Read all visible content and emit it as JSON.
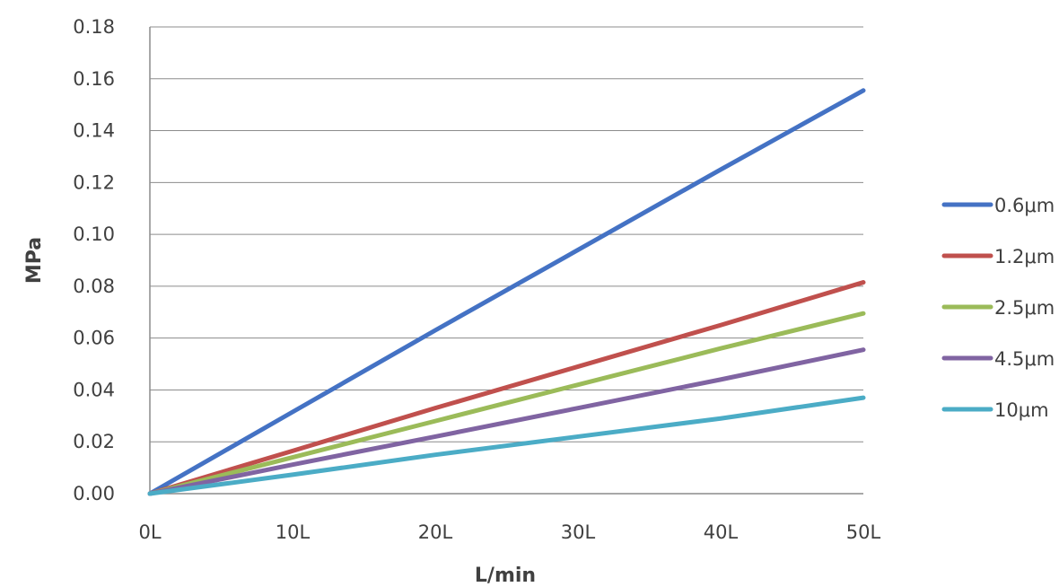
{
  "chart_data": {
    "type": "line",
    "title": "",
    "xlabel": "L/min",
    "ylabel": "MPa",
    "x": [
      0,
      10,
      20,
      30,
      40,
      50
    ],
    "x_tick_labels": [
      "0L",
      "10L",
      "20L",
      "30L",
      "40L",
      "50L"
    ],
    "y_ticks": [
      0,
      0.02,
      0.04,
      0.06,
      0.08,
      0.1,
      0.12,
      0.14,
      0.16,
      0.18
    ],
    "y_tick_labels": [
      "0.00",
      "0.02",
      "0.04",
      "0.06",
      "0.08",
      "0.10",
      "0.12",
      "0.14",
      "0.16",
      "0.18"
    ],
    "xlim": [
      0,
      50
    ],
    "ylim": [
      0,
      0.18
    ],
    "grid": "horizontal",
    "legend_position": "right",
    "series": [
      {
        "name": "0.6μm",
        "color": "#4472c4",
        "values": [
          0,
          0.0315,
          0.063,
          0.094,
          0.125,
          0.1555
        ]
      },
      {
        "name": "1.2μm",
        "color": "#c0504d",
        "values": [
          0,
          0.0165,
          0.033,
          0.049,
          0.065,
          0.0815
        ]
      },
      {
        "name": "2.5μm",
        "color": "#9bbb59",
        "values": [
          0,
          0.014,
          0.028,
          0.042,
          0.056,
          0.0695
        ]
      },
      {
        "name": "4.5μm",
        "color": "#8064a2",
        "values": [
          0,
          0.0112,
          0.022,
          0.033,
          0.044,
          0.0555
        ]
      },
      {
        "name": "10μm",
        "color": "#4bacc6",
        "values": [
          0,
          0.0073,
          0.015,
          0.022,
          0.029,
          0.037
        ]
      }
    ]
  }
}
